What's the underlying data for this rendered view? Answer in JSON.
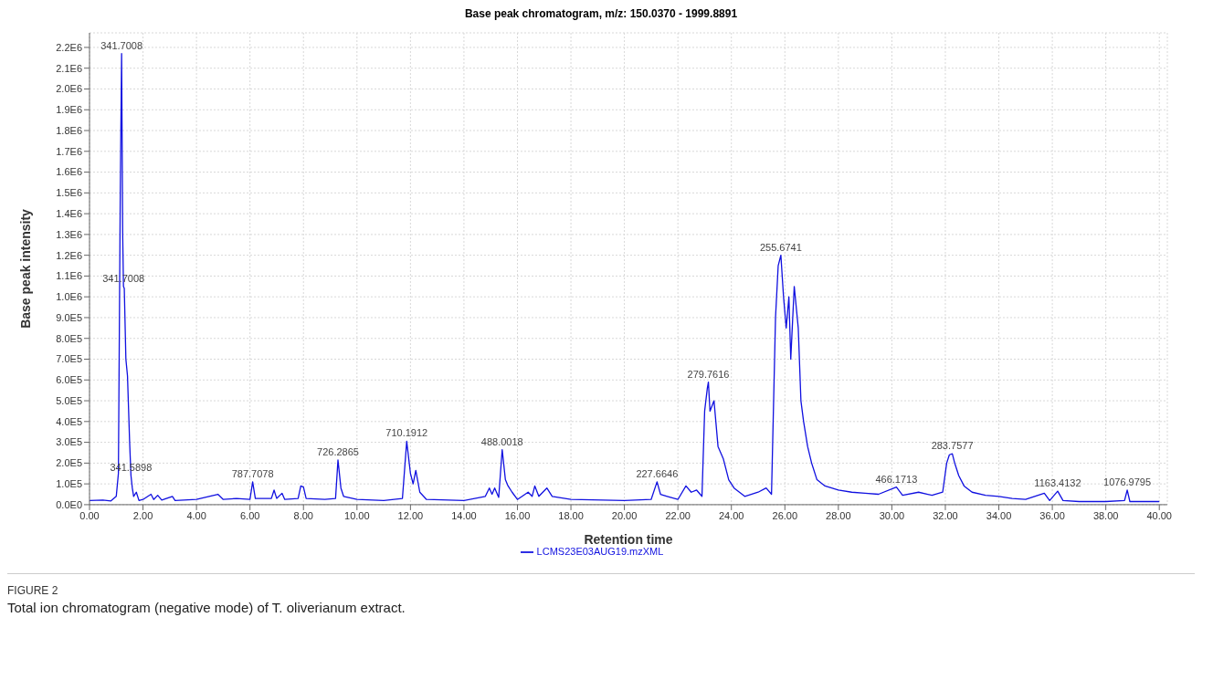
{
  "chart_data": {
    "type": "line",
    "title": "Base peak chromatogram, m/z: 150.0370 - 1999.8891",
    "xlabel": "Retention time",
    "ylabel": "Base peak intensity",
    "x": [
      0.0,
      0.5,
      0.8,
      1.0,
      1.08,
      1.15,
      1.2,
      1.24,
      1.27,
      1.3,
      1.36,
      1.42,
      1.5,
      1.55,
      1.6,
      1.65,
      1.75,
      1.85,
      2.0,
      2.3,
      2.4,
      2.55,
      2.7,
      3.1,
      3.2,
      4.0,
      4.8,
      5.0,
      5.5,
      6.0,
      6.1,
      6.2,
      6.8,
      6.9,
      7.0,
      7.2,
      7.3,
      7.8,
      7.9,
      8.0,
      8.1,
      8.8,
      9.2,
      9.29,
      9.4,
      9.5,
      10.0,
      11.0,
      11.7,
      11.86,
      12.0,
      12.1,
      12.2,
      12.35,
      12.6,
      14.0,
      14.8,
      14.95,
      15.05,
      15.15,
      15.3,
      15.43,
      15.55,
      15.65,
      15.8,
      16.0,
      16.4,
      16.55,
      16.65,
      16.8,
      17.1,
      17.3,
      18.0,
      20.0,
      21.0,
      21.22,
      21.35,
      21.6,
      22.0,
      22.3,
      22.5,
      22.7,
      22.9,
      23.0,
      23.1,
      23.14,
      23.2,
      23.35,
      23.5,
      23.7,
      23.9,
      24.1,
      24.5,
      25.0,
      25.3,
      25.5,
      25.65,
      25.75,
      25.85,
      25.95,
      26.05,
      26.15,
      26.22,
      26.35,
      26.5,
      26.6,
      26.7,
      26.85,
      27.0,
      27.2,
      27.5,
      28.0,
      28.5,
      29.0,
      29.5,
      30.17,
      30.4,
      31.0,
      31.5,
      31.9,
      32.05,
      32.15,
      32.26,
      32.35,
      32.5,
      32.7,
      33.0,
      33.5,
      34.0,
      34.5,
      35.0,
      35.7,
      35.9,
      36.2,
      36.4,
      37.0,
      38.0,
      38.7,
      38.8,
      38.9,
      39.5,
      40.0
    ],
    "series": [
      {
        "name": "LCMS23E03AUG19.mzXML",
        "color": "#1010e0",
        "values": [
          20000,
          22000,
          18000,
          40000,
          150000,
          1500000,
          2170000,
          1300000,
          1050000,
          1040000,
          700000,
          620000,
          300000,
          140000,
          80000,
          40000,
          60000,
          20000,
          25000,
          50000,
          25000,
          45000,
          22000,
          40000,
          20000,
          25000,
          50000,
          25000,
          30000,
          25000,
          110000,
          30000,
          30000,
          70000,
          30000,
          55000,
          25000,
          30000,
          90000,
          85000,
          30000,
          25000,
          30000,
          215000,
          80000,
          40000,
          25000,
          20000,
          30000,
          305000,
          150000,
          100000,
          165000,
          60000,
          25000,
          20000,
          40000,
          80000,
          50000,
          80000,
          35000,
          265000,
          120000,
          90000,
          60000,
          25000,
          60000,
          40000,
          90000,
          40000,
          80000,
          40000,
          25000,
          20000,
          25000,
          110000,
          50000,
          40000,
          25000,
          90000,
          60000,
          70000,
          40000,
          450000,
          560000,
          590000,
          450000,
          500000,
          280000,
          220000,
          120000,
          80000,
          40000,
          60000,
          80000,
          50000,
          900000,
          1150000,
          1200000,
          1000000,
          850000,
          1000000,
          700000,
          1050000,
          850000,
          500000,
          400000,
          280000,
          200000,
          120000,
          90000,
          70000,
          60000,
          55000,
          50000,
          85000,
          45000,
          60000,
          45000,
          60000,
          200000,
          240000,
          245000,
          200000,
          140000,
          90000,
          60000,
          45000,
          40000,
          30000,
          25000,
          55000,
          20000,
          65000,
          20000,
          15000,
          15000,
          20000,
          70000,
          15000,
          15000,
          15000
        ]
      }
    ],
    "xlim": [
      0,
      40.3
    ],
    "xticks": [
      {
        "value": 0,
        "label": "0.00"
      },
      {
        "value": 2,
        "label": "2.00"
      },
      {
        "value": 4,
        "label": "4.00"
      },
      {
        "value": 6,
        "label": "6.00"
      },
      {
        "value": 8,
        "label": "8.00"
      },
      {
        "value": 10,
        "label": "10.00"
      },
      {
        "value": 12,
        "label": "12.00"
      },
      {
        "value": 14,
        "label": "14.00"
      },
      {
        "value": 16,
        "label": "16.00"
      },
      {
        "value": 18,
        "label": "18.00"
      },
      {
        "value": 20,
        "label": "20.00"
      },
      {
        "value": 22,
        "label": "22.00"
      },
      {
        "value": 24,
        "label": "24.00"
      },
      {
        "value": 26,
        "label": "26.00"
      },
      {
        "value": 28,
        "label": "28.00"
      },
      {
        "value": 30,
        "label": "30.00"
      },
      {
        "value": 32,
        "label": "32.00"
      },
      {
        "value": 34,
        "label": "34.00"
      },
      {
        "value": 36,
        "label": "36.00"
      },
      {
        "value": 38,
        "label": "38.00"
      },
      {
        "value": 40,
        "label": "40.00"
      }
    ],
    "ylim": [
      0,
      2270000
    ],
    "yticks": [
      {
        "value": 0,
        "label": "0.0E0"
      },
      {
        "value": 100000,
        "label": "1.0E5"
      },
      {
        "value": 200000,
        "label": "2.0E5"
      },
      {
        "value": 300000,
        "label": "3.0E5"
      },
      {
        "value": 400000,
        "label": "4.0E5"
      },
      {
        "value": 500000,
        "label": "5.0E5"
      },
      {
        "value": 600000,
        "label": "6.0E5"
      },
      {
        "value": 700000,
        "label": "7.0E5"
      },
      {
        "value": 800000,
        "label": "8.0E5"
      },
      {
        "value": 900000,
        "label": "9.0E5"
      },
      {
        "value": 1000000,
        "label": "1.0E6"
      },
      {
        "value": 1100000,
        "label": "1.1E6"
      },
      {
        "value": 1200000,
        "label": "1.2E6"
      },
      {
        "value": 1300000,
        "label": "1.3E6"
      },
      {
        "value": 1400000,
        "label": "1.4E6"
      },
      {
        "value": 1500000,
        "label": "1.5E6"
      },
      {
        "value": 1600000,
        "label": "1.6E6"
      },
      {
        "value": 1700000,
        "label": "1.7E6"
      },
      {
        "value": 1800000,
        "label": "1.8E6"
      },
      {
        "value": 1900000,
        "label": "1.9E6"
      },
      {
        "value": 2000000,
        "label": "2.0E6"
      },
      {
        "value": 2100000,
        "label": "2.1E6"
      },
      {
        "value": 2200000,
        "label": "2.2E6"
      }
    ],
    "grid": true,
    "legend": "bottom",
    "marker": "none",
    "line_style": "solid",
    "annotations": [
      {
        "text": "341.7008",
        "x": 1.2,
        "y": 2170000
      },
      {
        "text": "341.7008",
        "x": 1.27,
        "y": 1050000
      },
      {
        "text": "341.5898",
        "x": 1.55,
        "y": 140000
      },
      {
        "text": "787.7078",
        "x": 6.1,
        "y": 110000
      },
      {
        "text": "726.2865",
        "x": 9.29,
        "y": 215000
      },
      {
        "text": "710.1912",
        "x": 11.86,
        "y": 305000
      },
      {
        "text": "488.0018",
        "x": 15.43,
        "y": 265000
      },
      {
        "text": "227.6646",
        "x": 21.22,
        "y": 110000
      },
      {
        "text": "279.7616",
        "x": 23.14,
        "y": 590000
      },
      {
        "text": "255.6741",
        "x": 25.85,
        "y": 1200000
      },
      {
        "text": "466.1713",
        "x": 30.17,
        "y": 85000
      },
      {
        "text": "283.7577",
        "x": 32.26,
        "y": 245000
      },
      {
        "text": "1163.4132",
        "x": 36.2,
        "y": 65000
      },
      {
        "text": "1076.9795",
        "x": 38.8,
        "y": 70000
      },
      "FIGURE 2",
      "Total ion chromatogram (negative mode) of T. oliverianum extract."
    ]
  }
}
